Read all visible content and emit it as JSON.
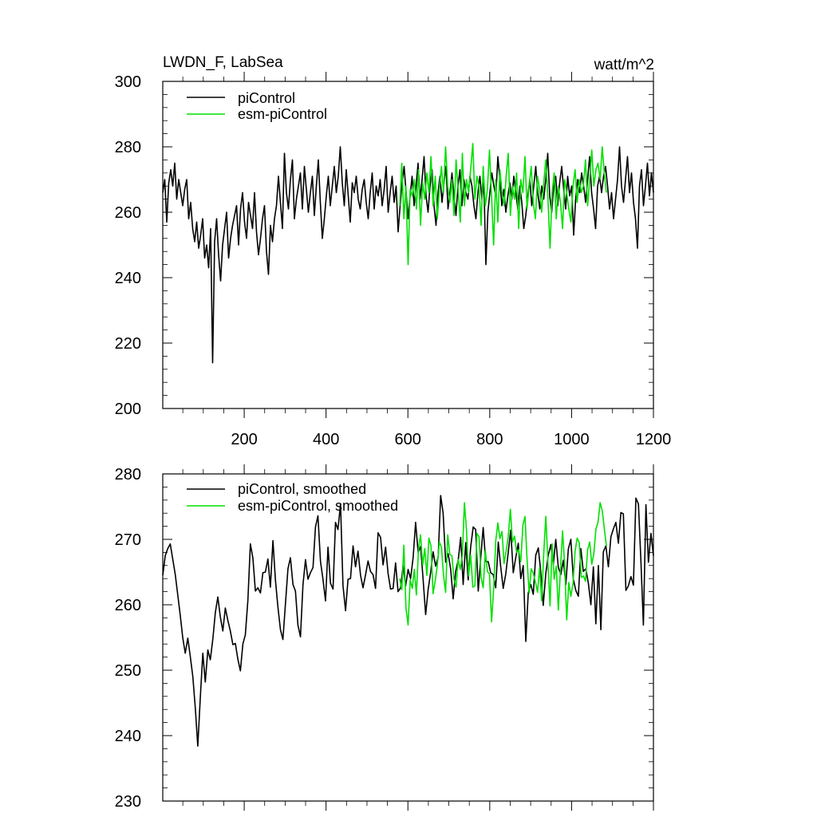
{
  "chart_data": [
    {
      "type": "line",
      "title": "LWDN_F, LabSea",
      "units": "watt/m^2",
      "xlim": [
        1,
        1200
      ],
      "ylim": [
        200,
        300
      ],
      "x_ticks": [
        200,
        400,
        600,
        800,
        1000,
        1200
      ],
      "y_ticks": [
        200,
        220,
        240,
        260,
        280,
        300
      ],
      "legend_position": "top-left",
      "series": [
        {
          "name": "piControl",
          "color": "#000000",
          "x_start": 1,
          "x_end": 1200,
          "values": [
            266,
            270,
            257,
            269,
            273,
            268,
            275,
            264,
            270,
            266,
            262,
            267,
            270,
            258,
            263,
            255,
            251,
            257,
            249,
            253,
            258,
            246,
            250,
            243,
            255,
            214,
            251,
            258,
            247,
            239,
            250,
            255,
            260,
            246,
            252,
            256,
            259,
            262,
            250,
            261,
            266,
            257,
            252,
            263,
            259,
            255,
            266,
            254,
            247,
            252,
            258,
            262,
            248,
            241,
            256,
            251,
            258,
            262,
            271,
            263,
            255,
            278,
            266,
            261,
            270,
            276,
            258,
            264,
            268,
            272,
            261,
            274,
            267,
            260,
            266,
            271,
            259,
            268,
            276,
            263,
            252,
            258,
            265,
            271,
            262,
            268,
            274,
            266,
            271,
            280,
            269,
            262,
            273,
            265,
            257,
            269,
            266,
            271,
            264,
            261,
            267,
            270,
            263,
            258,
            266,
            272,
            261,
            268,
            265,
            270,
            262,
            267,
            274,
            260,
            266,
            271,
            263,
            268,
            254,
            262,
            269,
            274,
            266,
            258,
            265,
            271,
            262,
            268,
            275,
            264,
            270,
            277,
            265,
            260,
            268,
            273,
            262,
            256,
            266,
            271,
            263,
            269,
            274,
            261,
            266,
            272,
            265,
            259,
            268,
            273,
            262,
            270,
            266,
            264,
            271,
            268,
            262,
            258,
            266,
            271,
            264,
            269,
            244,
            260,
            266,
            272,
            268,
            265,
            277,
            270,
            262,
            267,
            260,
            265,
            269,
            264,
            271,
            266,
            261,
            268,
            263,
            255,
            259,
            265,
            270,
            262,
            268,
            274,
            266,
            261,
            268,
            264,
            270,
            278,
            265,
            260,
            268,
            271,
            262,
            269,
            274,
            267,
            261,
            271,
            265,
            268,
            253,
            264,
            270,
            266,
            272,
            268,
            263,
            270,
            277,
            266,
            261,
            255,
            268,
            271,
            266,
            271,
            274,
            268,
            261,
            266,
            258,
            264,
            270,
            280,
            268,
            263,
            270,
            277,
            266,
            272,
            263,
            258,
            249,
            268,
            273,
            262,
            268,
            275,
            265,
            272,
            266
          ]
        },
        {
          "name": "esm-piControl",
          "color": "#00e000",
          "x_start": 580,
          "x_end": 1085,
          "values": [
            262,
            275,
            258,
            268,
            244,
            267,
            265,
            270,
            261,
            273,
            256,
            269,
            264,
            272,
            266,
            277,
            262,
            271,
            258,
            267,
            274,
            266,
            280,
            268,
            263,
            270,
            259,
            276,
            267,
            257,
            278,
            262,
            270,
            266,
            273,
            281,
            264,
            271,
            268,
            256,
            274,
            262,
            267,
            279,
            265,
            250,
            270,
            257,
            273,
            266,
            262,
            271,
            278,
            259,
            268,
            264,
            272,
            255,
            270,
            266,
            277,
            261,
            268,
            274,
            263,
            258,
            271,
            267,
            260,
            269,
            276,
            264,
            249,
            266,
            272,
            258,
            268,
            263,
            255,
            270,
            266,
            261,
            257,
            268,
            273,
            263,
            270,
            266,
            268,
            276,
            262,
            270,
            279,
            268,
            273,
            275,
            270,
            280,
            272,
            266
          ]
        }
      ]
    },
    {
      "type": "line",
      "xlim": [
        1,
        1200
      ],
      "ylim": [
        230,
        280
      ],
      "x_ticks": [
        200,
        400,
        600,
        800,
        1000,
        1200
      ],
      "y_ticks": [
        230,
        240,
        250,
        260,
        270,
        280
      ],
      "legend_position": "top-left",
      "series": [
        {
          "name": "piControl, smoothed",
          "color": "#000000",
          "x_start": 1,
          "x_end": 1200,
          "values": [
            264.5,
            267.5,
            268.6,
            269.3,
            266.9,
            264.6,
            261.5,
            258.3,
            254.9,
            252.6,
            254.9,
            252.1,
            249.0,
            244.2,
            238.4,
            245.9,
            252.6,
            248.2,
            253.1,
            251.6,
            254.8,
            258.8,
            261.2,
            258.1,
            256.0,
            259.5,
            257.6,
            256.0,
            253.9,
            254.1,
            251.7,
            249.9,
            254.0,
            255.4,
            260.7,
            269.3,
            267.1,
            262.1,
            262.6,
            261.8,
            264.9,
            265.0,
            267.0,
            262.7,
            269.8,
            263.8,
            259.7,
            256.2,
            254.7,
            260.2,
            265.5,
            267.2,
            263.1,
            262.1,
            256.9,
            255.1,
            263.0,
            266.9,
            263.9,
            264.9,
            265.7,
            271.9,
            273.6,
            266.6,
            263.9,
            260.6,
            268.8,
            263.3,
            262.4,
            272.6,
            271.5,
            275.4,
            262.9,
            259.1,
            263.9,
            264.0,
            269.0,
            265.8,
            268.2,
            264.5,
            262.6,
            264.6,
            266.7,
            265.1,
            264.6,
            262.5,
            271.0,
            270.3,
            266.1,
            268.8,
            264.8,
            262.4,
            262.5,
            266.4,
            262.0,
            262.6,
            266.0,
            262.9,
            265.4,
            264.0,
            267.2,
            272.6,
            268.0,
            268.9,
            263.9,
            258.5,
            262.3,
            264.9,
            268.1,
            265.9,
            267.3,
            276.7,
            274.0,
            266.5,
            267.8,
            265.5,
            260.9,
            265.1,
            266.8,
            270.3,
            263.1,
            269.5,
            263.8,
            268.8,
            271.9,
            271.5,
            262.1,
            267.1,
            271.8,
            266.6,
            266.6,
            264.9,
            264.6,
            262.6,
            269.6,
            265.8,
            262.5,
            264.7,
            268.0,
            271.4,
            264.9,
            267.2,
            269.4,
            264.0,
            266.0,
            254.4,
            261.8,
            263.1,
            261.6,
            267.6,
            268.7,
            265.0,
            259.9,
            264.8,
            267.6,
            269.2,
            266.2,
            270.0,
            265.7,
            264.6,
            266.8,
            263.1,
            268.5,
            270.0,
            263.9,
            262.2,
            261.3,
            268.6,
            265.1,
            265.5,
            263.3,
            260.0,
            265.8,
            257.1,
            266.0,
            256.2,
            268.1,
            269.0,
            265.8,
            270.4,
            271.6,
            272.6,
            269.4,
            274.1,
            273.9,
            262.2,
            262.9,
            264.3,
            263.0,
            276.3,
            275.4,
            266.7,
            256.9,
            275.3,
            266.5,
            270.9,
            267.5
          ]
        },
        {
          "name": "esm-piControl, smoothed",
          "color": "#00e000",
          "x_start": 580,
          "x_end": 1085,
          "values": [
            264.0,
            262.3,
            269.1,
            259.5,
            256.9,
            263.8,
            262.5,
            265.4,
            261.5,
            268.5,
            270.7,
            266.1,
            268.6,
            264.5,
            270.2,
            269.0,
            261.7,
            263.7,
            266.0,
            269.6,
            268.8,
            264.5,
            261.9,
            270.7,
            267.7,
            267.5,
            263.9,
            262.7,
            266.9,
            265.4,
            267.6,
            275.6,
            271.4,
            264.4,
            267.6,
            262.7,
            262.9,
            270.9,
            270.4,
            264.2,
            262.6,
            268.3,
            265.1,
            264.7,
            257.4,
            262.4,
            269.7,
            272.5,
            270.1,
            271.2,
            266.3,
            268.2,
            270.4,
            274.6,
            269.6,
            270.5,
            268.0,
            268.4,
            266.6,
            272.2,
            273.5,
            266.9,
            261.8,
            265.5,
            264.8,
            263.5,
            261.9,
            265.7,
            260.6,
            267.9,
            273.5,
            266.4,
            259.8,
            269.3,
            263.9,
            265.9,
            259.2,
            265.5,
            271.3,
            266.2,
            257.7,
            263.4,
            261.3,
            263.3,
            268.2,
            270.2,
            269.5,
            264.2,
            264.4,
            263.6,
            268.4,
            269.6,
            266.2,
            267.8,
            271.6,
            272.6,
            275.6,
            274.4,
            271.7,
            269.0
          ]
        }
      ]
    }
  ]
}
